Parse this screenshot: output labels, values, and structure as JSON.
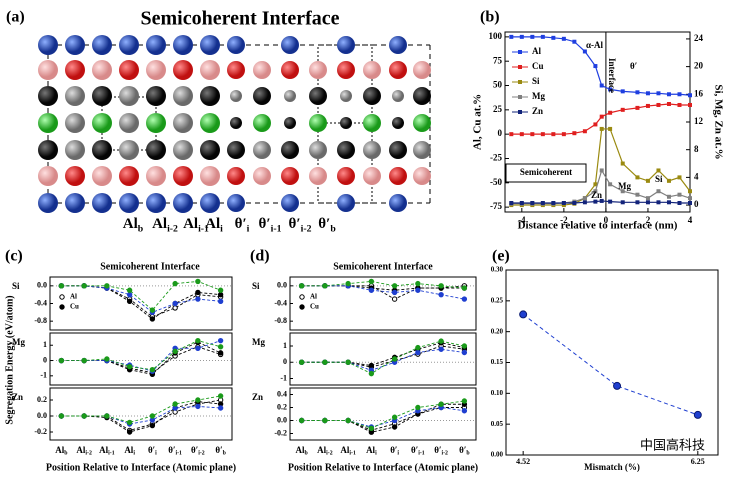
{
  "structure": {
    "panel_label": "(a)",
    "title": "Semicoherent Interface",
    "layer_labels": [
      {
        "base": "Al",
        "sub": "b"
      },
      {
        "base": "Al",
        "sub": "i-2"
      },
      {
        "base": "Al",
        "sub": "i-1"
      },
      {
        "base": "Al",
        "sub": "i"
      },
      {
        "base": "θ′",
        "sub": "i"
      },
      {
        "base": "θ′",
        "sub": "i-1"
      },
      {
        "base": "θ′",
        "sub": "i-2"
      },
      {
        "base": "θ′",
        "sub": "b"
      }
    ]
  },
  "watermark": "中国高科技",
  "chart_data": [
    {
      "type": "line",
      "panel_label": "(b)",
      "xlabel": "Distance relative to interface (nm)",
      "ylabel": "Al, Cu at.%",
      "y2label": "Si, Mg, Zn at.%",
      "x": [
        -4.5,
        -4,
        -3.5,
        -3,
        -2.5,
        -2,
        -1.5,
        -1,
        -0.5,
        -0.2,
        0.2,
        0.8,
        1.5,
        2,
        2.5,
        3,
        3.5,
        4
      ],
      "xlim": [
        -4.8,
        4
      ],
      "xticks": [
        -4,
        -2,
        0,
        2,
        4
      ],
      "ylim": [
        -80,
        105
      ],
      "yticks": [
        -75,
        -50,
        -25,
        0,
        25,
        50,
        75,
        100
      ],
      "y2lim": [
        -1,
        25
      ],
      "y2ticks": [
        0,
        4,
        8,
        12,
        16,
        20,
        24
      ],
      "annotations": [
        "α-Al",
        "Interface",
        "θ′",
        "Semicoherent",
        "Zn",
        "Mg",
        "Si"
      ],
      "series": [
        {
          "name": "Al",
          "color": "#1f3fe0",
          "values": [
            100,
            100,
            100,
            100,
            99,
            98,
            95,
            85,
            70,
            50,
            46,
            44,
            43,
            42,
            42,
            41,
            41,
            40
          ]
        },
        {
          "name": "Cu",
          "color": "#e01f1f",
          "values": [
            0,
            0,
            0,
            0,
            0,
            0,
            1,
            3,
            10,
            18,
            22,
            25,
            27,
            29,
            30,
            31,
            30,
            30
          ]
        },
        {
          "name": "Si",
          "color": "#9a8a10",
          "axis": "y2",
          "values": [
            0,
            0,
            0,
            0,
            0,
            0,
            0.2,
            1,
            3,
            11,
            11,
            6,
            4,
            3.5,
            5,
            3.5,
            4,
            2
          ]
        },
        {
          "name": "Mg",
          "color": "#808080",
          "axis": "y2",
          "values": [
            0.2,
            0.2,
            0.2,
            0.2,
            0.2,
            0.3,
            0.5,
            1,
            2,
            5,
            3,
            2,
            1.5,
            1,
            2,
            1.2,
            1.5,
            1
          ]
        },
        {
          "name": "Zn",
          "color": "#12237a",
          "axis": "y2",
          "values": [
            0.3,
            0.3,
            0.3,
            0.3,
            0.3,
            0.3,
            0.3,
            0.4,
            0.5,
            0.6,
            0.5,
            0.4,
            0.4,
            0.4,
            0.4,
            0.4,
            0.3,
            0.3
          ]
        }
      ]
    },
    {
      "type": "line",
      "panel_label": "(c)",
      "title": "Semicoherent Interface",
      "xlabel": "Position Relative to Interface (Atomic plane)",
      "ylabel": "Segregation Energy (eV/atom)",
      "categories": [
        {
          "base": "Al",
          "sub": "b"
        },
        {
          "base": "Al",
          "sub": "i-2"
        },
        {
          "base": "Al",
          "sub": "i-1"
        },
        {
          "base": "Al",
          "sub": "i"
        },
        {
          "base": "θ′",
          "sub": "i"
        },
        {
          "base": "θ′",
          "sub": "i-1"
        },
        {
          "base": "θ′",
          "sub": "i-2"
        },
        {
          "base": "θ′",
          "sub": "b"
        }
      ],
      "subplots": [
        {
          "label": "Si",
          "ylim": [
            -1.0,
            0.2
          ],
          "yticks": [
            {
              "value": 0,
              "label": "0.0"
            },
            -0.4,
            -0.8
          ],
          "series": [
            {
              "name": "Al",
              "color": "#000000",
              "marker": "open",
              "values": [
                0,
                0,
                -0.05,
                -0.3,
                -0.7,
                -0.5,
                -0.2,
                -0.25
              ]
            },
            {
              "name": "Cu",
              "color": "#000000",
              "marker": "filled",
              "values": [
                0,
                0,
                -0.05,
                -0.35,
                -0.75,
                -0.4,
                -0.15,
                -0.2
              ]
            },
            {
              "color": "#1f3fd0",
              "marker": "filled",
              "values": [
                0,
                0,
                -0.05,
                -0.2,
                -0.6,
                -0.4,
                -0.3,
                -0.35
              ]
            },
            {
              "color": "#1a9a1a",
              "marker": "filled",
              "values": [
                0,
                0,
                0,
                -0.1,
                -0.55,
                0.05,
                0.1,
                -0.1
              ]
            }
          ]
        },
        {
          "label": "Mg",
          "ylim": [
            -1.6,
            1.8
          ],
          "yticks": [
            -1,
            0,
            1
          ],
          "series": [
            {
              "color": "#000000",
              "marker": "open",
              "values": [
                0,
                0,
                0,
                -0.5,
                -0.8,
                0.3,
                0.9,
                0.4
              ]
            },
            {
              "color": "#000000",
              "marker": "filled",
              "values": [
                0,
                0,
                0,
                -0.6,
                -0.9,
                0.5,
                1.2,
                0.5
              ]
            },
            {
              "color": "#1f3fd0",
              "marker": "filled",
              "values": [
                0,
                0,
                0,
                -0.3,
                -0.7,
                0.8,
                0.8,
                1.3
              ]
            },
            {
              "color": "#1a9a1a",
              "marker": "filled",
              "values": [
                0,
                0,
                0.1,
                -0.4,
                -0.6,
                0.6,
                1.3,
                0.9
              ]
            }
          ]
        },
        {
          "label": "Zn",
          "ylim": [
            -0.3,
            0.35
          ],
          "yticks": [
            -0.2,
            {
              "value": 0,
              "label": "0.0"
            },
            0.2
          ],
          "series": [
            {
              "color": "#000000",
              "marker": "open",
              "values": [
                0,
                0,
                0,
                -0.18,
                -0.1,
                0.05,
                0.15,
                0.2
              ]
            },
            {
              "color": "#000000",
              "marker": "filled",
              "values": [
                0,
                0,
                -0.02,
                -0.2,
                -0.12,
                0.1,
                0.18,
                0.15
              ]
            },
            {
              "color": "#1f3fd0",
              "marker": "filled",
              "values": [
                0,
                0,
                0,
                -0.1,
                -0.05,
                0.1,
                0.12,
                0.1
              ]
            },
            {
              "color": "#1a9a1a",
              "marker": "filled",
              "values": [
                0,
                0,
                0,
                -0.08,
                0,
                0.15,
                0.2,
                0.25
              ]
            }
          ]
        }
      ]
    },
    {
      "type": "line",
      "panel_label": "(d)",
      "title": "Semicoherent Interface",
      "xlabel": "Position Relative to Interface (Atomic plane)",
      "categories": [
        {
          "base": "Al",
          "sub": "b"
        },
        {
          "base": "Al",
          "sub": "i-2"
        },
        {
          "base": "Al",
          "sub": "i-1"
        },
        {
          "base": "Al",
          "sub": "i"
        },
        {
          "base": "θ′",
          "sub": "i"
        },
        {
          "base": "θ′",
          "sub": "i-1"
        },
        {
          "base": "θ′",
          "sub": "i-2"
        },
        {
          "base": "θ′",
          "sub": "b"
        }
      ],
      "subplots": [
        {
          "label": "Si",
          "ylim": [
            -1.0,
            0.2
          ],
          "yticks": [
            {
              "value": 0,
              "label": "0.0"
            },
            -0.4,
            -0.8
          ],
          "series": [
            {
              "name": "Al",
              "color": "#000000",
              "marker": "open",
              "values": [
                0,
                0,
                0,
                0,
                -0.3,
                -0.05,
                -0.05,
                0
              ]
            },
            {
              "name": "Cu",
              "color": "#000000",
              "marker": "filled",
              "values": [
                0,
                0,
                0,
                -0.05,
                -0.1,
                -0.05,
                -0.05,
                -0.05
              ]
            },
            {
              "color": "#1f3fd0",
              "marker": "filled",
              "values": [
                0,
                0,
                0,
                -0.1,
                -0.15,
                -0.1,
                -0.2,
                -0.3
              ]
            },
            {
              "color": "#1a9a1a",
              "marker": "filled",
              "values": [
                0,
                0,
                0.05,
                0.1,
                0,
                0.05,
                0,
                -0.05
              ]
            }
          ]
        },
        {
          "label": "Mg",
          "ylim": [
            -1.4,
            1.8
          ],
          "yticks": [
            -1,
            0,
            1
          ],
          "series": [
            {
              "color": "#000000",
              "marker": "open",
              "values": [
                0,
                0,
                0,
                -0.3,
                0.1,
                0.5,
                1.0,
                0.8
              ]
            },
            {
              "color": "#000000",
              "marker": "filled",
              "values": [
                0,
                0,
                0,
                -0.2,
                0.3,
                0.8,
                1.2,
                0.9
              ]
            },
            {
              "color": "#1f3fd0",
              "marker": "filled",
              "values": [
                0,
                0,
                0,
                -0.5,
                0,
                0.6,
                0.8,
                0.6
              ]
            },
            {
              "color": "#1a9a1a",
              "marker": "filled",
              "values": [
                0,
                0,
                0,
                -0.7,
                0.2,
                0.9,
                1.3,
                1.0
              ]
            }
          ]
        },
        {
          "label": "Zn",
          "ylim": [
            -0.3,
            0.5
          ],
          "yticks": [
            -0.2,
            {
              "value": 0,
              "label": "0.0"
            },
            0.2,
            0.4
          ],
          "series": [
            {
              "color": "#000000",
              "marker": "open",
              "values": [
                0,
                0,
                0,
                -0.15,
                -0.05,
                0.1,
                0.2,
                0.2
              ]
            },
            {
              "color": "#000000",
              "marker": "filled",
              "values": [
                0,
                0,
                0,
                -0.18,
                -0.1,
                0.1,
                0.25,
                0.25
              ]
            },
            {
              "color": "#1f3fd0",
              "marker": "filled",
              "values": [
                0,
                0,
                0,
                -0.1,
                0,
                0.15,
                0.2,
                0.15
              ]
            },
            {
              "color": "#1a9a1a",
              "marker": "filled",
              "values": [
                0,
                0,
                0,
                -0.12,
                0.05,
                0.2,
                0.25,
                0.3
              ]
            }
          ]
        }
      ]
    },
    {
      "type": "scatter",
      "panel_label": "(e)",
      "xlabel": "Mismatch (%)",
      "color": "#1f3fd0",
      "x": [
        4.52,
        5.45,
        6.25
      ],
      "values": [
        0.228,
        0.112,
        0.065
      ],
      "xlim": [
        4.35,
        6.45
      ],
      "xticks": [
        4.52,
        6.25
      ],
      "ylim": [
        0,
        0.3
      ],
      "yticks": [
        {
          "value": 0,
          "label": "0.00"
        },
        {
          "value": 0.05,
          "label": "0.05"
        },
        {
          "value": 0.1,
          "label": "0.10"
        },
        {
          "value": 0.15,
          "label": "0.15"
        },
        {
          "value": 0.2,
          "label": "0.20"
        },
        {
          "value": 0.25,
          "label": "0.25"
        },
        {
          "value": 0.3,
          "label": "0.30"
        }
      ]
    }
  ]
}
